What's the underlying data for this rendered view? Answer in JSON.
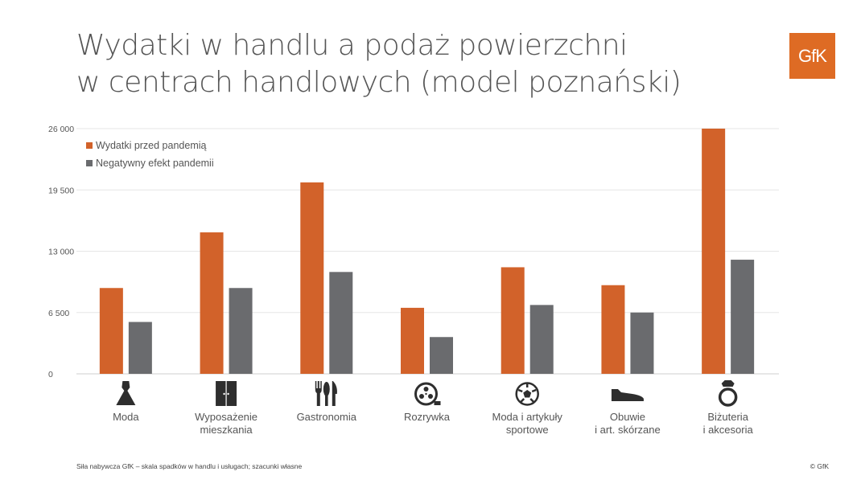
{
  "title_line1": "Wydatki w handlu a podaż powierzchni",
  "title_line2": "w centrach handlowych (model poznański)",
  "logo_text": "GfK",
  "footer_left": "Siła nabywcza GfK – skala spadków w handlu i usługach; szacunki własne",
  "footer_right": "© GfK",
  "colors": {
    "orange": "#d2622a",
    "gray": "#6a6b6e",
    "logo": "#de6b24",
    "grid": "#e6e6e6"
  },
  "chart_data": {
    "type": "bar",
    "categories": [
      "Moda",
      "Wyposażenie\nmieszkania",
      "Gastronomia",
      "Rozrywka",
      "Moda i artykuły\nsportowe",
      "Obuwie\ni art. skórzane",
      "Biżuteria\ni akcesoria"
    ],
    "category_icons": [
      "dress-icon",
      "wardrobe-icon",
      "cutlery-icon",
      "film-reel-icon",
      "football-icon",
      "shoe-icon",
      "ring-icon"
    ],
    "series": [
      {
        "name": "Wydatki przed pandemią",
        "color": "#d2622a",
        "values": [
          9100,
          15000,
          20300,
          7000,
          11300,
          9400,
          26000
        ]
      },
      {
        "name": "Negatywny efekt pandemii",
        "color": "#6a6b6e",
        "values": [
          5500,
          9100,
          10800,
          3900,
          7300,
          6500,
          12100
        ]
      }
    ],
    "yticks": [
      "0",
      "6 500",
      "13 000",
      "19 500",
      "26 000"
    ],
    "ylim": [
      0,
      26000
    ],
    "grid": true,
    "legend_position": "top-left"
  }
}
